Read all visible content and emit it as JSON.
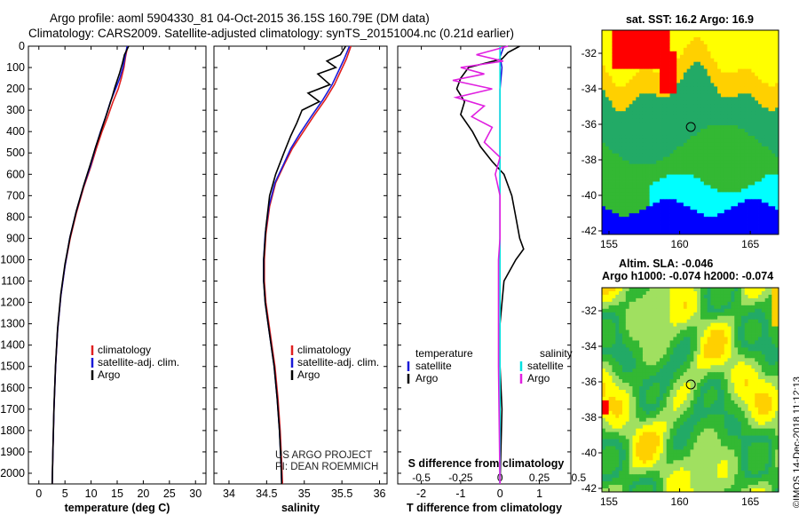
{
  "header": {
    "line1": "Argo profile: aoml 5904330_81 04-Oct-2015 36.15S 160.79E (DM data)",
    "line2": "Climatology: CARS2009. Satellite-adjusted climatology: synTS_20151004.nc (0.21d earlier)"
  },
  "stamp": "©IMOS 14-Dec-2018 11:12:13",
  "colors": {
    "climatology": "#e02020",
    "satellite": "#1a1ad8",
    "argo": "#000000",
    "s_satellite": "#00e0e0",
    "s_argo": "#e020e0"
  },
  "chart_data": [
    {
      "type": "line",
      "xlabel": "temperature (deg C)",
      "xlim": [
        -2,
        32
      ],
      "x_ticks": [
        0,
        5,
        10,
        15,
        20,
        25,
        30
      ],
      "ylim": [
        2050,
        0
      ],
      "y_ticks": [
        0,
        100,
        200,
        300,
        400,
        500,
        600,
        700,
        800,
        900,
        1000,
        1100,
        1200,
        1300,
        1400,
        1500,
        1600,
        1700,
        1800,
        1900,
        2000
      ],
      "legend": "lower-center",
      "series": [
        {
          "name": "climatology",
          "color": "#e02020",
          "points": [
            [
              17.0,
              0
            ],
            [
              16.6,
              50
            ],
            [
              16.3,
              100
            ],
            [
              15.8,
              150
            ],
            [
              15.2,
              200
            ],
            [
              14.2,
              260
            ],
            [
              13.2,
              330
            ],
            [
              12.1,
              400
            ],
            [
              11.0,
              480
            ],
            [
              10.0,
              560
            ],
            [
              8.6,
              660
            ],
            [
              7.2,
              780
            ],
            [
              6.0,
              900
            ],
            [
              5.0,
              1030
            ],
            [
              4.2,
              1170
            ],
            [
              3.6,
              1330
            ],
            [
              3.2,
              1500
            ],
            [
              2.9,
              1700
            ],
            [
              2.7,
              1900
            ],
            [
              2.55,
              2050
            ]
          ]
        },
        {
          "name": "satellite-adj. clim.",
          "color": "#1a1ad8",
          "points": [
            [
              16.9,
              0
            ],
            [
              16.5,
              50
            ],
            [
              16.1,
              100
            ],
            [
              15.5,
              150
            ],
            [
              14.7,
              200
            ],
            [
              13.7,
              260
            ],
            [
              12.8,
              330
            ],
            [
              11.8,
              400
            ],
            [
              10.8,
              480
            ],
            [
              9.9,
              560
            ],
            [
              8.5,
              660
            ],
            [
              7.1,
              780
            ],
            [
              5.9,
              900
            ],
            [
              5.0,
              1030
            ],
            [
              4.2,
              1170
            ],
            [
              3.6,
              1330
            ],
            [
              3.2,
              1500
            ],
            [
              2.9,
              1700
            ],
            [
              2.7,
              1900
            ],
            [
              2.55,
              2050
            ]
          ]
        },
        {
          "name": "Argo",
          "color": "#000000",
          "points": [
            [
              17.2,
              0
            ],
            [
              16.4,
              40
            ],
            [
              16.0,
              80
            ],
            [
              15.4,
              130
            ],
            [
              14.6,
              190
            ],
            [
              14.0,
              240
            ],
            [
              13.1,
              310
            ],
            [
              12.0,
              390
            ],
            [
              10.9,
              470
            ],
            [
              9.9,
              550
            ],
            [
              8.6,
              650
            ],
            [
              7.2,
              770
            ],
            [
              6.0,
              890
            ],
            [
              5.0,
              1020
            ],
            [
              4.2,
              1160
            ],
            [
              3.6,
              1320
            ],
            [
              3.2,
              1490
            ],
            [
              2.9,
              1690
            ],
            [
              2.7,
              1890
            ],
            [
              2.55,
              2050
            ]
          ]
        }
      ]
    },
    {
      "type": "line",
      "xlabel": "salinity",
      "xlim": [
        33.8,
        36.1
      ],
      "x_ticks": [
        34,
        34.5,
        35,
        35.5,
        36
      ],
      "x_tick_labels": [
        "34",
        "34.5",
        "35",
        "35.5",
        "36"
      ],
      "ylim": [
        2050,
        0
      ],
      "legend": "lower-center",
      "annotation": [
        "US ARGO PROJECT",
        "PI: DEAN ROEMMICH"
      ],
      "series": [
        {
          "name": "climatology",
          "color": "#e02020",
          "points": [
            [
              35.62,
              0
            ],
            [
              35.56,
              60
            ],
            [
              35.48,
              120
            ],
            [
              35.4,
              180
            ],
            [
              35.28,
              250
            ],
            [
              35.12,
              330
            ],
            [
              34.97,
              410
            ],
            [
              34.84,
              480
            ],
            [
              34.74,
              550
            ],
            [
              34.62,
              640
            ],
            [
              34.54,
              750
            ],
            [
              34.49,
              880
            ],
            [
              34.47,
              1000
            ],
            [
              34.47,
              1100
            ],
            [
              34.49,
              1200
            ],
            [
              34.53,
              1300
            ],
            [
              34.57,
              1400
            ],
            [
              34.61,
              1500
            ],
            [
              34.65,
              1650
            ],
            [
              34.68,
              1800
            ],
            [
              34.7,
              1950
            ],
            [
              34.71,
              2050
            ]
          ]
        },
        {
          "name": "satellite-adj. clim.",
          "color": "#1a1ad8",
          "points": [
            [
              35.6,
              0
            ],
            [
              35.53,
              60
            ],
            [
              35.45,
              120
            ],
            [
              35.37,
              180
            ],
            [
              35.25,
              250
            ],
            [
              35.09,
              330
            ],
            [
              34.94,
              410
            ],
            [
              34.82,
              480
            ],
            [
              34.73,
              550
            ],
            [
              34.61,
              640
            ],
            [
              34.53,
              750
            ],
            [
              34.48,
              880
            ],
            [
              34.46,
              1000
            ],
            [
              34.46,
              1100
            ],
            [
              34.48,
              1200
            ],
            [
              34.52,
              1300
            ],
            [
              34.56,
              1400
            ],
            [
              34.6,
              1500
            ],
            [
              34.64,
              1650
            ],
            [
              34.67,
              1800
            ],
            [
              34.69,
              1950
            ],
            [
              34.7,
              2050
            ]
          ]
        },
        {
          "name": "Argo",
          "color": "#000000",
          "points": [
            [
              35.55,
              0
            ],
            [
              35.48,
              40
            ],
            [
              35.3,
              70
            ],
            [
              35.42,
              100
            ],
            [
              35.18,
              130
            ],
            [
              35.34,
              180
            ],
            [
              35.05,
              220
            ],
            [
              35.2,
              260
            ],
            [
              34.97,
              300
            ],
            [
              34.9,
              360
            ],
            [
              34.82,
              420
            ],
            [
              34.73,
              500
            ],
            [
              34.62,
              600
            ],
            [
              34.54,
              700
            ],
            [
              34.49,
              850
            ],
            [
              34.46,
              1000
            ],
            [
              34.46,
              1100
            ],
            [
              34.48,
              1200
            ],
            [
              34.52,
              1300
            ],
            [
              34.56,
              1400
            ],
            [
              34.6,
              1500
            ],
            [
              34.64,
              1650
            ],
            [
              34.67,
              1800
            ],
            [
              34.69,
              1950
            ],
            [
              34.7,
              2050
            ]
          ]
        }
      ]
    },
    {
      "type": "line",
      "xlabel": "T difference from climatology",
      "xlim": [
        -2.6,
        1.8
      ],
      "x_ticks": [
        -2,
        -1,
        0,
        1
      ],
      "top_label": "S difference from climatology",
      "top_ticks": [
        -0.5,
        -0.25,
        0,
        0.25,
        0.5
      ],
      "top_tick_labels": [
        "-0.5",
        "-0.25",
        "0",
        "0.25",
        "0.5"
      ],
      "top_xlim": [
        -0.65,
        0.45
      ],
      "ylim": [
        2050,
        0
      ],
      "legend": "lower",
      "legend_titles": [
        "temperature",
        "salinity"
      ],
      "series": [
        {
          "name": "satellite",
          "group": "temperature",
          "color": "#1a1ad8",
          "points": [
            [
              0.1,
              0
            ],
            [
              0,
              50
            ],
            [
              0.05,
              100
            ],
            [
              0,
              200
            ],
            [
              0,
              300
            ],
            [
              0,
              500
            ],
            [
              0,
              700
            ],
            [
              0,
              900
            ],
            [
              0,
              1100
            ],
            [
              0,
              1300
            ],
            [
              0,
              1500
            ],
            [
              0,
              1700
            ],
            [
              0,
              2050
            ]
          ]
        },
        {
          "name": "Argo",
          "group": "temperature",
          "color": "#000000",
          "points": [
            [
              0.5,
              0
            ],
            [
              0.2,
              30
            ],
            [
              0.05,
              60
            ],
            [
              -0.8,
              100
            ],
            [
              -1.0,
              150
            ],
            [
              -1.1,
              200
            ],
            [
              -0.9,
              260
            ],
            [
              -1.0,
              320
            ],
            [
              -0.7,
              400
            ],
            [
              -0.5,
              470
            ],
            [
              -0.2,
              540
            ],
            [
              0.1,
              600
            ],
            [
              0.3,
              700
            ],
            [
              0.4,
              800
            ],
            [
              0.5,
              900
            ],
            [
              0.6,
              950
            ],
            [
              0.4,
              1000
            ],
            [
              0.1,
              1100
            ],
            [
              0,
              1300
            ],
            [
              0,
              1500
            ],
            [
              0.05,
              1700
            ],
            [
              0,
              2050
            ]
          ]
        },
        {
          "name": "satellite",
          "group": "salinity",
          "color": "#00e0e0",
          "points": [
            [
              0,
              0
            ],
            [
              0,
              50
            ],
            [
              0,
              100
            ],
            [
              0,
              200
            ],
            [
              0,
              400
            ],
            [
              0,
              600
            ],
            [
              0,
              800
            ],
            [
              0,
              1000
            ],
            [
              0,
              1200
            ],
            [
              0,
              1500
            ],
            [
              0,
              2050
            ]
          ]
        },
        {
          "name": "Argo",
          "group": "salinity",
          "color": "#e020e0",
          "points": [
            [
              0.05,
              0
            ],
            [
              -0.15,
              40
            ],
            [
              0.02,
              70
            ],
            [
              -0.25,
              100
            ],
            [
              -0.1,
              130
            ],
            [
              -0.3,
              160
            ],
            [
              -0.05,
              200
            ],
            [
              -0.28,
              240
            ],
            [
              -0.1,
              280
            ],
            [
              -0.18,
              330
            ],
            [
              -0.05,
              380
            ],
            [
              -0.1,
              450
            ],
            [
              0,
              520
            ],
            [
              -0.03,
              600
            ],
            [
              0,
              700
            ],
            [
              0,
              900
            ],
            [
              -0.01,
              1000
            ],
            [
              -0.01,
              1100
            ],
            [
              -0.01,
              1300
            ],
            [
              -0.01,
              1500
            ],
            [
              0,
              2050
            ]
          ]
        }
      ]
    },
    {
      "type": "heatmap",
      "title": "sat. SST: 16.2 Argo: 16.9",
      "xlim": [
        154.5,
        167
      ],
      "x_ticks": [
        155,
        160,
        165
      ],
      "ylim": [
        -42.2,
        -30.7
      ],
      "y_ticks": [
        -32,
        -34,
        -36,
        -38,
        -40,
        -42
      ],
      "marker": [
        160.79,
        -36.15
      ]
    },
    {
      "type": "heatmap",
      "title": "Altim. SLA: -0.046",
      "subtitle": "Argo h1000: -0.074 h2000: -0.074",
      "xlim": [
        154.5,
        167
      ],
      "x_ticks": [
        155,
        160,
        165
      ],
      "ylim": [
        -42.2,
        -30.7
      ],
      "y_ticks": [
        -32,
        -34,
        -36,
        -38,
        -40,
        -42
      ],
      "marker": [
        160.79,
        -36.15
      ]
    }
  ]
}
